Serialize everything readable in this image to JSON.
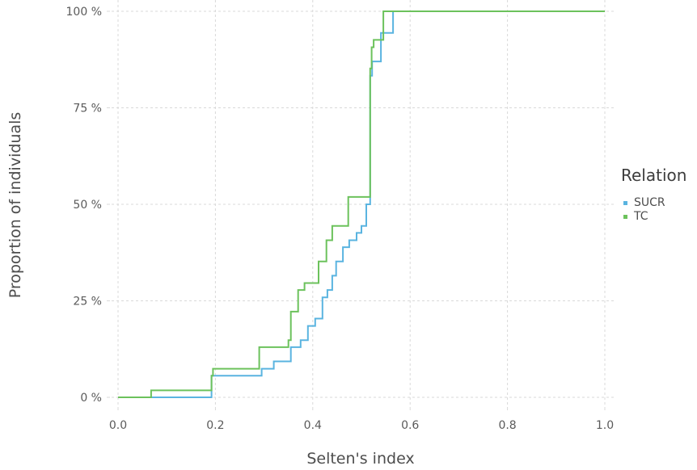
{
  "chart_data": {
    "type": "line",
    "step": true,
    "xlabel": "Selten's index",
    "ylabel": "Proportion of individuals",
    "xlim": [
      0,
      1
    ],
    "ylim": [
      0,
      1
    ],
    "x_ticks": [
      {
        "value": 0.0,
        "label": "0.0"
      },
      {
        "value": 0.2,
        "label": "0.2"
      },
      {
        "value": 0.4,
        "label": "0.4"
      },
      {
        "value": 0.6,
        "label": "0.6"
      },
      {
        "value": 0.8,
        "label": "0.8"
      },
      {
        "value": 1.0,
        "label": "1.0"
      }
    ],
    "y_ticks": [
      {
        "value": 0.0,
        "label": "0 %"
      },
      {
        "value": 0.25,
        "label": "25 %"
      },
      {
        "value": 0.5,
        "label": "50 %"
      },
      {
        "value": 0.75,
        "label": "75 %"
      },
      {
        "value": 1.0,
        "label": "100 %"
      }
    ],
    "grid": true,
    "legend": {
      "title": "Relation",
      "placement": "right"
    },
    "series": [
      {
        "name": "SUCR",
        "color": "#5ab4e0",
        "x": [
          0.0,
          0.192,
          0.295,
          0.32,
          0.355,
          0.375,
          0.39,
          0.405,
          0.42,
          0.43,
          0.44,
          0.448,
          0.462,
          0.475,
          0.49,
          0.5,
          0.51,
          0.518,
          0.522,
          0.528,
          0.54,
          0.55,
          0.565,
          1.0
        ],
        "y": [
          0.0,
          0.056,
          0.074,
          0.093,
          0.13,
          0.148,
          0.185,
          0.204,
          0.259,
          0.278,
          0.315,
          0.352,
          0.389,
          0.407,
          0.426,
          0.444,
          0.5,
          0.833,
          0.87,
          0.87,
          0.944,
          0.944,
          1.0,
          1.0
        ]
      },
      {
        "name": "TC",
        "color": "#6cc25c",
        "x": [
          0.0,
          0.068,
          0.192,
          0.195,
          0.29,
          0.35,
          0.355,
          0.37,
          0.383,
          0.392,
          0.412,
          0.428,
          0.44,
          0.45,
          0.473,
          0.49,
          0.518,
          0.521,
          0.525,
          0.54,
          0.545,
          1.0
        ],
        "y": [
          0.0,
          0.018,
          0.056,
          0.074,
          0.13,
          0.148,
          0.222,
          0.278,
          0.296,
          0.296,
          0.352,
          0.407,
          0.444,
          0.444,
          0.519,
          0.519,
          0.852,
          0.907,
          0.926,
          0.926,
          1.0,
          1.0
        ]
      }
    ]
  }
}
